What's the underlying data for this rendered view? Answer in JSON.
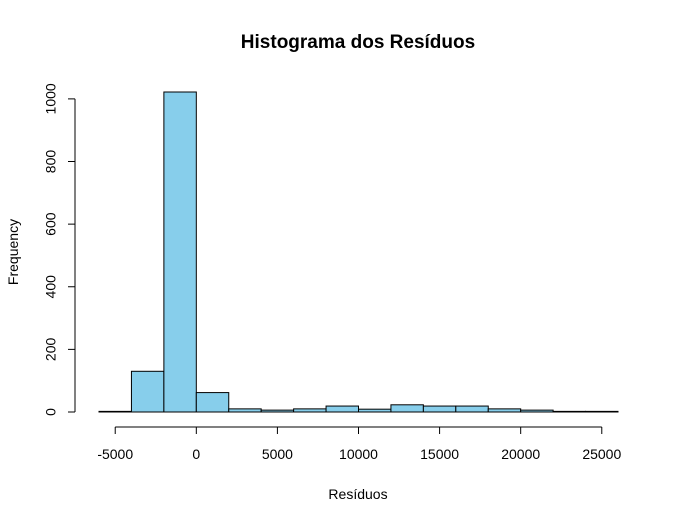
{
  "chart_data": {
    "type": "bar",
    "title": "Histograma dos Resíduos",
    "xlabel": "Resíduos",
    "ylabel": "Frequency",
    "bins": [
      {
        "start": -6000,
        "end": -4000,
        "count": 2
      },
      {
        "start": -4000,
        "end": -2000,
        "count": 130
      },
      {
        "start": -2000,
        "end": 0,
        "count": 1022
      },
      {
        "start": 0,
        "end": 2000,
        "count": 62
      },
      {
        "start": 2000,
        "end": 4000,
        "count": 10
      },
      {
        "start": 4000,
        "end": 6000,
        "count": 6
      },
      {
        "start": 6000,
        "end": 8000,
        "count": 10
      },
      {
        "start": 8000,
        "end": 10000,
        "count": 19
      },
      {
        "start": 10000,
        "end": 12000,
        "count": 9
      },
      {
        "start": 12000,
        "end": 14000,
        "count": 23
      },
      {
        "start": 14000,
        "end": 16000,
        "count": 19
      },
      {
        "start": 16000,
        "end": 18000,
        "count": 19
      },
      {
        "start": 18000,
        "end": 20000,
        "count": 10
      },
      {
        "start": 20000,
        "end": 22000,
        "count": 6
      },
      {
        "start": 22000,
        "end": 24000,
        "count": 2
      },
      {
        "start": 24000,
        "end": 26000,
        "count": 2
      }
    ],
    "xticks": [
      -5000,
      0,
      5000,
      10000,
      15000,
      20000,
      25000
    ],
    "xtick_labels": [
      "-5000",
      "0",
      "5000",
      "10000",
      "15000",
      "20000",
      "25000"
    ],
    "yticks": [
      0,
      200,
      400,
      600,
      800,
      1000
    ],
    "ytick_labels": [
      "0",
      "200",
      "400",
      "600",
      "800",
      "1000"
    ],
    "xlim": [
      -6000,
      26000
    ],
    "ylim": [
      0,
      1022
    ],
    "bar_color": "#87CEEB",
    "grid": false
  }
}
